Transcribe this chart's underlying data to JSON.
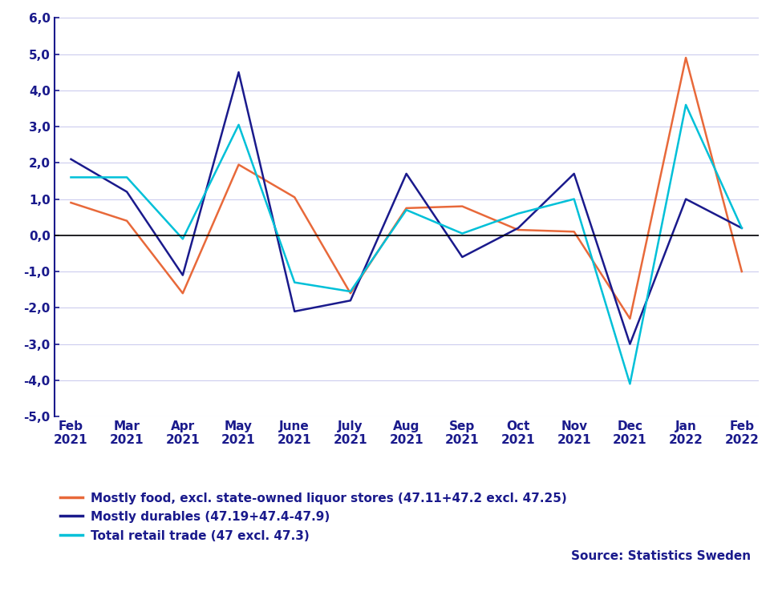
{
  "x_labels": [
    "Feb\n2021",
    "Mar\n2021",
    "Apr\n2021",
    "May\n2021",
    "June\n2021",
    "July\n2021",
    "Aug\n2021",
    "Sep\n2021",
    "Oct\n2021",
    "Nov\n2021",
    "Dec\n2021",
    "Jan\n2022",
    "Feb\n2022"
  ],
  "food": [
    0.9,
    0.4,
    -1.6,
    1.95,
    1.05,
    -1.6,
    0.75,
    0.8,
    0.15,
    0.1,
    -2.3,
    4.9,
    -1.0
  ],
  "durables": [
    2.1,
    1.2,
    -1.1,
    4.5,
    -2.1,
    -1.8,
    1.7,
    -0.6,
    0.2,
    1.7,
    -3.0,
    1.0,
    0.2
  ],
  "total": [
    1.6,
    1.6,
    -0.1,
    3.05,
    -1.3,
    -1.55,
    0.7,
    0.05,
    0.6,
    1.0,
    -4.1,
    3.6,
    0.2
  ],
  "food_color": "#E8693A",
  "durables_color": "#1A1A8C",
  "total_color": "#00C0D8",
  "food_label": "Mostly food, excl. state-owned liquor stores (47.11+47.2 excl. 47.25)",
  "durables_label": "Mostly durables (47.19+47.4-47.9)",
  "total_label": "Total retail trade (47 excl. 47.3)",
  "source_text": "Source: Statistics Sweden",
  "ylim_min": -5.0,
  "ylim_max": 6.0,
  "yticks": [
    -5.0,
    -4.0,
    -3.0,
    -2.0,
    -1.0,
    0.0,
    1.0,
    2.0,
    3.0,
    4.0,
    5.0,
    6.0
  ],
  "ytick_labels": [
    "-5,0",
    "-4,0",
    "-3,0",
    "-2,0",
    "-1,0",
    "0,0",
    "1,0",
    "2,0",
    "3,0",
    "4,0",
    "5,0",
    "6,0"
  ],
  "background_color": "#FFFFFF",
  "plot_bg_color": "#FFFFFF",
  "grid_color": "#CCCCEE",
  "spine_color": "#1A1A8C",
  "label_color": "#1A1A8C",
  "line_width": 1.8,
  "legend_fontsize": 11,
  "tick_fontsize": 11
}
